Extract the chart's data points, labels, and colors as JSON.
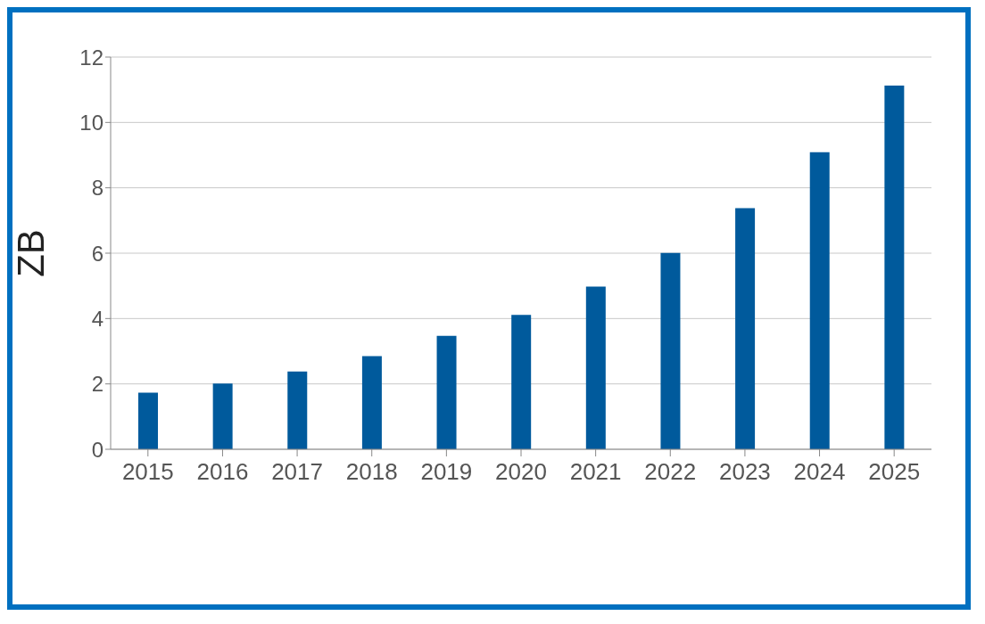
{
  "chart_data": {
    "type": "bar",
    "ylabel": "ZB",
    "categories": [
      "2015",
      "2016",
      "2017",
      "2018",
      "2019",
      "2020",
      "2021",
      "2022",
      "2023",
      "2024",
      "2025"
    ],
    "values": [
      1.73,
      2.01,
      2.38,
      2.85,
      3.47,
      4.11,
      4.98,
      6.01,
      7.38,
      9.09,
      11.13
    ],
    "color": "#005a9c",
    "ylim": [
      0,
      12
    ],
    "yticks": [
      0,
      2,
      4,
      6,
      8,
      10,
      12
    ],
    "grid": "y"
  }
}
